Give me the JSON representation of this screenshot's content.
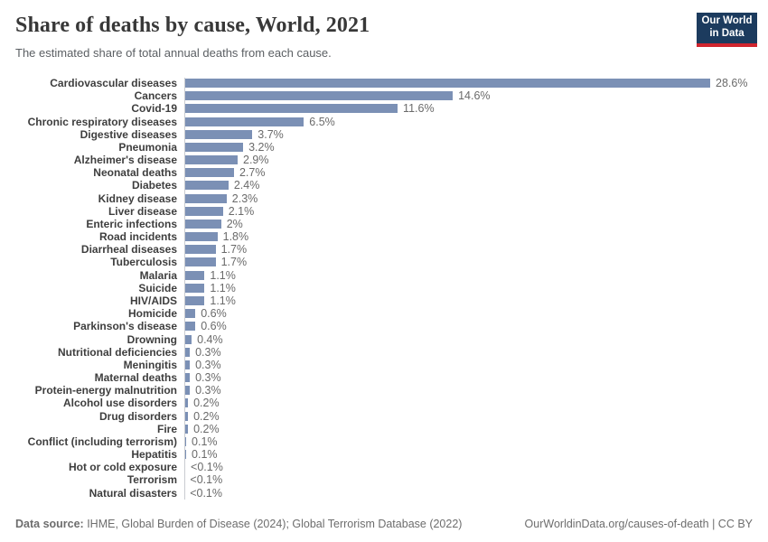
{
  "header": {
    "title": "Share of deaths by cause, World, 2021",
    "subtitle": "The estimated share of total annual deaths from each cause.",
    "logo": {
      "line1": "Our World",
      "line2": "in Data"
    }
  },
  "chart_data": {
    "type": "bar",
    "orientation": "horizontal",
    "title": "Share of deaths by cause, World, 2021",
    "xlabel": "",
    "ylabel": "",
    "unit": "%",
    "xlim": [
      0,
      28.6
    ],
    "grid": false,
    "legend": "none",
    "bar_color": "#7b90b5",
    "categories": [
      "Cardiovascular diseases",
      "Cancers",
      "Covid-19",
      "Chronic respiratory diseases",
      "Digestive diseases",
      "Pneumonia",
      "Alzheimer's disease",
      "Neonatal deaths",
      "Diabetes",
      "Kidney disease",
      "Liver disease",
      "Enteric infections",
      "Road incidents",
      "Diarrheal diseases",
      "Tuberculosis",
      "Malaria",
      "Suicide",
      "HIV/AIDS",
      "Homicide",
      "Parkinson's disease",
      "Drowning",
      "Nutritional deficiencies",
      "Meningitis",
      "Maternal deaths",
      "Protein-energy malnutrition",
      "Alcohol use disorders",
      "Drug disorders",
      "Fire",
      "Conflict (including terrorism)",
      "Hepatitis",
      "Hot or cold exposure",
      "Terrorism",
      "Natural disasters"
    ],
    "values": [
      28.6,
      14.6,
      11.6,
      6.5,
      3.7,
      3.2,
      2.9,
      2.7,
      2.4,
      2.3,
      2.1,
      2.0,
      1.8,
      1.7,
      1.7,
      1.1,
      1.1,
      1.1,
      0.6,
      0.6,
      0.4,
      0.3,
      0.3,
      0.3,
      0.3,
      0.2,
      0.2,
      0.2,
      0.1,
      0.1,
      0.05,
      0.02,
      0.01
    ],
    "value_labels": [
      "28.6%",
      "14.6%",
      "11.6%",
      "6.5%",
      "3.7%",
      "3.2%",
      "2.9%",
      "2.7%",
      "2.4%",
      "2.3%",
      "2.1%",
      "2%",
      "1.8%",
      "1.7%",
      "1.7%",
      "1.1%",
      "1.1%",
      "1.1%",
      "0.6%",
      "0.6%",
      "0.4%",
      "0.3%",
      "0.3%",
      "0.3%",
      "0.3%",
      "0.2%",
      "0.2%",
      "0.2%",
      "0.1%",
      "0.1%",
      "<0.1%",
      "<0.1%",
      "<0.1%"
    ]
  },
  "footer": {
    "source_label": "Data source:",
    "source_text": " IHME, Global Burden of Disease (2024); Global Terrorism Database (2022)",
    "link": "OurWorldinData.org/causes-of-death",
    "divider": " | ",
    "license": "CC BY"
  },
  "colors": {
    "bar": "#7b90b5",
    "axis_line": "#c9ccd1",
    "logo_background": "#1c3b5e",
    "logo_accent": "#d0252e",
    "title_text": "#383838",
    "value_text": "#6a6a6a"
  }
}
